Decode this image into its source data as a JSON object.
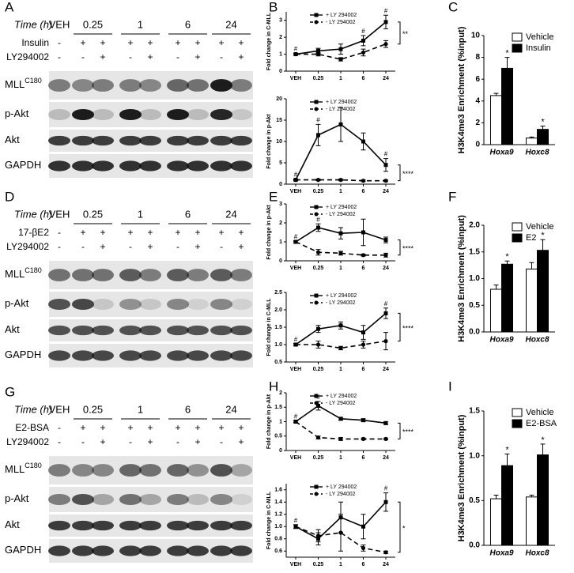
{
  "blots": [
    {
      "panel": "A",
      "time_label": "Time (h)",
      "times": [
        "VEH",
        "0.25",
        "1",
        "6",
        "24"
      ],
      "treatments": [
        {
          "name": "Insulin",
          "signs": [
            "-",
            "+",
            "+",
            "+",
            "+",
            "+",
            "+",
            "+",
            "+"
          ]
        },
        {
          "name": "LY294002",
          "signs": [
            "-",
            "-",
            "+",
            "-",
            "+",
            "-",
            "+",
            "-",
            "+"
          ]
        }
      ],
      "rows": [
        {
          "name": "MLL",
          "sup": "C180"
        },
        {
          "name": "p-Akt"
        },
        {
          "name": "Akt"
        },
        {
          "name": "GAPDH"
        }
      ]
    },
    {
      "panel": "D",
      "time_label": "Time (h)",
      "times": [
        "VEH",
        "0.25",
        "1",
        "6",
        "24"
      ],
      "treatments": [
        {
          "name": "17-βE2",
          "signs": [
            "-",
            "+",
            "+",
            "+",
            "+",
            "+",
            "+",
            "+",
            "+"
          ]
        },
        {
          "name": "LY294002",
          "signs": [
            "-",
            "-",
            "+",
            "-",
            "+",
            "-",
            "+",
            "-",
            "+"
          ]
        }
      ],
      "rows": [
        {
          "name": "MLL",
          "sup": "C180"
        },
        {
          "name": "p-Akt"
        },
        {
          "name": "Akt"
        },
        {
          "name": "GAPDH"
        }
      ]
    },
    {
      "panel": "G",
      "time_label": "Time (h)",
      "times": [
        "VEH",
        "0.25",
        "1",
        "6",
        "24"
      ],
      "treatments": [
        {
          "name": "E2-BSA",
          "signs": [
            "-",
            "+",
            "+",
            "+",
            "+",
            "+",
            "+",
            "+",
            "+"
          ]
        },
        {
          "name": "LY294002",
          "signs": [
            "-",
            "-",
            "+",
            "-",
            "+",
            "-",
            "+",
            "-",
            "+"
          ]
        }
      ],
      "rows": [
        {
          "name": "MLL",
          "sup": "C180"
        },
        {
          "name": "p-Akt"
        },
        {
          "name": "Akt"
        },
        {
          "name": "GAPDH"
        }
      ]
    }
  ],
  "chart_data": [
    {
      "type": "line",
      "panel": "B",
      "ylabel": "Fold change in C-MLL",
      "categories": [
        "VEH",
        "0.25",
        "1",
        "6",
        "24"
      ],
      "ylim": [
        0,
        3.5
      ],
      "yticks": [
        0,
        1,
        2,
        3
      ],
      "legend": "upper left",
      "significance": "**",
      "series": [
        {
          "name": "+ LY 294002",
          "color": "#000",
          "line_style": "solid",
          "marker": "square",
          "values": [
            1.0,
            1.2,
            1.3,
            1.8,
            2.9
          ],
          "errors": [
            0.05,
            0.15,
            0.3,
            0.3,
            0.4
          ],
          "point_notes": [
            "#",
            null,
            null,
            "#",
            "#"
          ]
        },
        {
          "name": "- LY 294002",
          "color": "#000",
          "line_style": "dashed",
          "marker": "circle",
          "values": [
            1.0,
            1.0,
            0.7,
            1.1,
            1.6
          ],
          "errors": [
            0.05,
            0.1,
            0.1,
            0.2,
            0.2
          ],
          "point_notes": [
            null,
            null,
            null,
            null,
            null
          ]
        }
      ]
    },
    {
      "type": "line",
      "ylabel": "Fold change in p-Akt",
      "categories": [
        "VEH",
        "0.25",
        "1",
        "6",
        "24"
      ],
      "ylim": [
        0,
        20
      ],
      "yticks": [
        0,
        5,
        10,
        15,
        20
      ],
      "legend": "upper left",
      "significance": "****",
      "series": [
        {
          "name": "+ LY 294002",
          "color": "#000",
          "line_style": "solid",
          "marker": "square",
          "values": [
            1,
            11.5,
            14,
            10,
            4.5
          ],
          "errors": [
            0.2,
            2.5,
            4,
            2,
            1.5
          ],
          "point_notes": [
            "#",
            "#",
            null,
            null,
            "#"
          ]
        },
        {
          "name": "- LY 294002",
          "color": "#000",
          "line_style": "dashed",
          "marker": "circle",
          "values": [
            1,
            1,
            1,
            0.8,
            0.8
          ],
          "errors": [
            0.1,
            0.2,
            0.2,
            0.2,
            0.2
          ],
          "point_notes": [
            null,
            null,
            null,
            null,
            null
          ]
        }
      ]
    },
    {
      "type": "line",
      "panel": "E",
      "ylabel": "Fold change in p-Akt",
      "categories": [
        "VEH",
        "0.25",
        "1",
        "6",
        "24"
      ],
      "ylim": [
        0,
        3
      ],
      "yticks": [
        0,
        1,
        2,
        3
      ],
      "legend": "upper left",
      "significance": "****",
      "series": [
        {
          "name": "+ LY 294002",
          "color": "#000",
          "line_style": "solid",
          "marker": "square",
          "values": [
            1,
            1.75,
            1.45,
            1.5,
            1.1
          ],
          "errors": [
            0.05,
            0.2,
            0.3,
            0.7,
            0.15
          ],
          "point_notes": [
            "#",
            "#",
            null,
            null,
            null
          ]
        },
        {
          "name": "- LY 294002",
          "color": "#000",
          "line_style": "dashed",
          "marker": "circle",
          "values": [
            1,
            0.45,
            0.4,
            0.3,
            0.3
          ],
          "errors": [
            0.05,
            0.15,
            0.1,
            0.05,
            0.1
          ],
          "point_notes": [
            null,
            null,
            null,
            null,
            null
          ]
        }
      ]
    },
    {
      "type": "line",
      "ylabel": "Fold change in C-MLL",
      "categories": [
        "VEH",
        "0.25",
        "1",
        "6",
        "24"
      ],
      "ylim": [
        0.5,
        2.5
      ],
      "yticks": [
        {
          "value": 0.5,
          "label": "0.5"
        },
        {
          "value": 1,
          "label": "1.0"
        },
        {
          "value": 1.5,
          "label": "1.5"
        },
        {
          "value": 2,
          "label": "2.0"
        },
        {
          "value": 2.5,
          "label": "2.5"
        }
      ],
      "legend": "upper left",
      "significance": "****",
      "series": [
        {
          "name": "+ LY 294002",
          "color": "#000",
          "line_style": "solid",
          "marker": "square",
          "values": [
            1,
            1.45,
            1.55,
            1.35,
            1.9
          ],
          "errors": [
            0.03,
            0.1,
            0.1,
            0.2,
            0.15
          ],
          "point_notes": [
            "#",
            null,
            null,
            null,
            "#"
          ]
        },
        {
          "name": "- LY 294002",
          "color": "#000",
          "line_style": "dashed",
          "marker": "circle",
          "values": [
            1,
            1,
            0.9,
            1,
            1.1
          ],
          "errors": [
            0.03,
            0.1,
            0.05,
            0.1,
            0.25
          ],
          "point_notes": [
            null,
            null,
            null,
            null,
            null
          ]
        }
      ]
    },
    {
      "type": "line",
      "panel": "H",
      "ylabel": "Fold change in p-Akt",
      "categories": [
        "VEH",
        "0.25",
        "1",
        "6",
        "24"
      ],
      "ylim": [
        0,
        2
      ],
      "yticks": [
        0,
        0.5,
        1,
        1.5,
        2
      ],
      "legend": "upper left",
      "significance": "****",
      "series": [
        {
          "name": "+ LY 294002",
          "color": "#000",
          "line_style": "solid",
          "marker": "square",
          "values": [
            1,
            1.55,
            1.1,
            1.05,
            0.95
          ],
          "errors": [
            0.03,
            0.15,
            0.05,
            0.05,
            0.05
          ],
          "point_notes": [
            "#",
            "#",
            null,
            null,
            null
          ]
        },
        {
          "name": "- LY 294002",
          "color": "#000",
          "line_style": "dashed",
          "marker": "circle",
          "values": [
            1,
            0.45,
            0.4,
            0.4,
            0.4
          ],
          "errors": [
            0.03,
            0.05,
            0.05,
            0.03,
            0.03
          ],
          "point_notes": [
            null,
            null,
            null,
            null,
            null
          ]
        }
      ]
    },
    {
      "type": "line",
      "ylabel": "Fold change in C-MLL",
      "categories": [
        "VEH",
        "0.25",
        "1",
        "6",
        "24"
      ],
      "ylim": [
        0.5,
        1.7
      ],
      "yticks": [
        {
          "value": 0.6,
          "label": "0.6"
        },
        {
          "value": 0.8,
          "label": "0.8"
        },
        {
          "value": 1,
          "label": "1.0"
        },
        {
          "value": 1.2,
          "label": "1.2"
        },
        {
          "value": 1.4,
          "label": "1.4"
        },
        {
          "value": 1.6,
          "label": "1.6"
        }
      ],
      "legend": "upper left",
      "significance": "*",
      "series": [
        {
          "name": "+ LY 294002",
          "color": "#000",
          "line_style": "solid",
          "marker": "square",
          "values": [
            1,
            0.8,
            1.15,
            1.0,
            1.4
          ],
          "errors": [
            0.03,
            0.1,
            0.25,
            0.2,
            0.15
          ],
          "point_notes": [
            "#",
            null,
            null,
            null,
            "#"
          ]
        },
        {
          "name": "- LY 294002",
          "color": "#000",
          "line_style": "dashed",
          "marker": "circle",
          "values": [
            1,
            0.85,
            0.9,
            0.65,
            0.58
          ],
          "errors": [
            0.03,
            0.1,
            0.3,
            0.05,
            0.02
          ],
          "point_notes": [
            null,
            null,
            null,
            null,
            null
          ]
        }
      ]
    },
    {
      "type": "bar",
      "panel": "C",
      "ylabel": "H3K4me3 Enrichment (%input)",
      "categories": [
        "Hoxa9",
        "Hoxc8"
      ],
      "ylim": [
        0,
        10
      ],
      "yticks": [
        0,
        2,
        4,
        6,
        8,
        10
      ],
      "legend": "upper right",
      "series": [
        {
          "name": "Vehicle",
          "color": "#fff",
          "values": [
            4.5,
            0.6
          ],
          "errors": [
            0.2,
            0.1
          ],
          "point_notes": [
            null,
            null
          ]
        },
        {
          "name": "Insulin",
          "color": "#000",
          "values": [
            7.0,
            1.4
          ],
          "errors": [
            1.0,
            0.3
          ],
          "point_notes": [
            "*",
            "*"
          ]
        }
      ]
    },
    {
      "type": "bar",
      "panel": "F",
      "ylabel": "H3K4me3 Enrichment (%input)",
      "categories": [
        "Hoxa9",
        "Hoxc8"
      ],
      "ylim": [
        0,
        2
      ],
      "yticks": [
        {
          "value": 0,
          "label": "0.0"
        },
        {
          "value": 0.5,
          "label": "0.5"
        },
        {
          "value": 1,
          "label": "1.0"
        },
        {
          "value": 1.5,
          "label": "1.5"
        },
        {
          "value": 2,
          "label": "2.0"
        }
      ],
      "legend": "upper right",
      "series": [
        {
          "name": "Vehicle",
          "color": "#fff",
          "values": [
            0.8,
            1.18
          ],
          "errors": [
            0.08,
            0.12
          ],
          "point_notes": [
            null,
            null
          ]
        },
        {
          "name": "E2",
          "color": "#000",
          "values": [
            1.27,
            1.53
          ],
          "errors": [
            0.06,
            0.2
          ],
          "point_notes": [
            "*",
            "*"
          ]
        }
      ]
    },
    {
      "type": "bar",
      "panel": "I",
      "ylabel": "H3K4me3 Enrichment (%input)",
      "categories": [
        "Hoxa9",
        "Hoxc8"
      ],
      "ylim": [
        0,
        1.5
      ],
      "yticks": [
        {
          "value": 0,
          "label": "0.0"
        },
        {
          "value": 0.5,
          "label": "0.5"
        },
        {
          "value": 1,
          "label": "1.0"
        },
        {
          "value": 1.5,
          "label": "1.5"
        }
      ],
      "legend": "upper right",
      "series": [
        {
          "name": "Vehicle",
          "color": "#fff",
          "values": [
            0.52,
            0.54
          ],
          "errors": [
            0.04,
            0.02
          ],
          "point_notes": [
            null,
            null
          ]
        },
        {
          "name": "E2-BSA",
          "color": "#000",
          "values": [
            0.89,
            1.01
          ],
          "errors": [
            0.13,
            0.12
          ],
          "point_notes": [
            "*",
            "*"
          ]
        }
      ]
    }
  ]
}
